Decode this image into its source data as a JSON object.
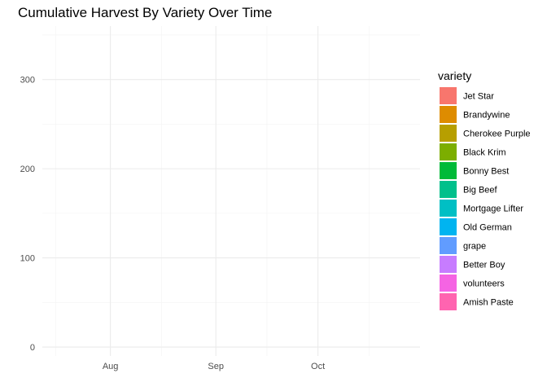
{
  "chart_data": {
    "type": "area",
    "title": "Cumulative Harvest By Variety Over Time",
    "xlabel": "",
    "ylabel": "",
    "x_axis": {
      "type": "date",
      "range": [
        "2020-07-12",
        "2020-10-31"
      ],
      "ticks": [
        {
          "value": "2020-08-01",
          "label": "Aug"
        },
        {
          "value": "2020-09-01",
          "label": "Sep"
        },
        {
          "value": "2020-10-01",
          "label": "Oct"
        }
      ],
      "minor_ticks": [
        "2020-07-16",
        "2020-08-16",
        "2020-09-16",
        "2020-10-16"
      ]
    },
    "y_axis": {
      "range": [
        -10,
        360
      ],
      "ticks": [
        0,
        100,
        200,
        300
      ],
      "minor_ticks": [
        50,
        150,
        250,
        350
      ]
    },
    "grid": true,
    "legend": {
      "title": "variety",
      "placement": "right"
    },
    "series": [
      {
        "name": "Jet Star",
        "color": "#F8766D",
        "values": []
      },
      {
        "name": "Brandywine",
        "color": "#DE8C00",
        "values": []
      },
      {
        "name": "Cherokee Purple",
        "color": "#B79F00",
        "values": []
      },
      {
        "name": "Black Krim",
        "color": "#7CAE00",
        "values": []
      },
      {
        "name": "Bonny Best",
        "color": "#00BA38",
        "values": []
      },
      {
        "name": "Big Beef",
        "color": "#00C08B",
        "values": []
      },
      {
        "name": "Mortgage Lifter",
        "color": "#00BFC4",
        "values": []
      },
      {
        "name": "Old German",
        "color": "#00B4F0",
        "values": []
      },
      {
        "name": "grape",
        "color": "#619CFF",
        "values": []
      },
      {
        "name": "Better Boy",
        "color": "#C77CFF",
        "values": []
      },
      {
        "name": "volunteers",
        "color": "#F564E3",
        "values": []
      },
      {
        "name": "Amish Paste",
        "color": "#FF64B0",
        "values": []
      }
    ]
  }
}
